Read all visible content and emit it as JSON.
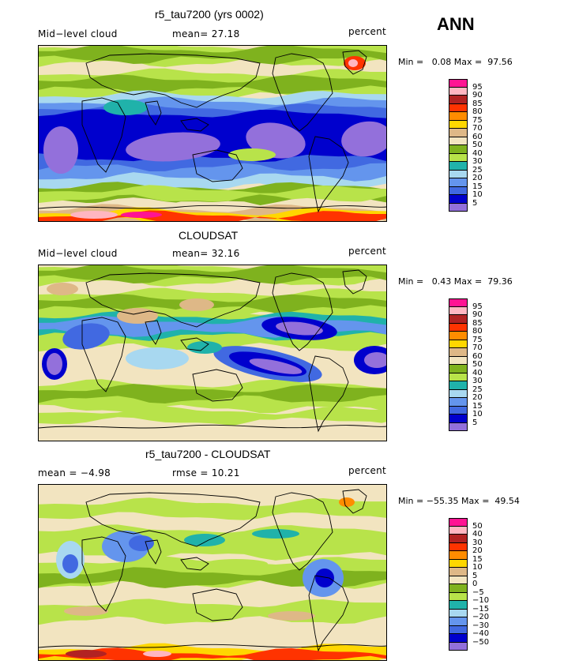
{
  "season": "ANN",
  "panels": [
    {
      "title": "r5_tau7200 (yrs 0002)",
      "left_label": "Mid−level cloud",
      "center_label": "mean=  27.18",
      "right_label": "percent",
      "min_label": "Min =",
      "min_value": "0.08",
      "max_label": "Max =",
      "max_value": "97.56",
      "map_name": "model-cloud-map"
    },
    {
      "title": "CLOUDSAT",
      "left_label": "Mid−level cloud",
      "center_label": "mean=  32.16",
      "right_label": "percent",
      "min_label": "Min =",
      "min_value": "0.43",
      "max_label": "Max =",
      "max_value": "79.36",
      "map_name": "cloudsat-cloud-map"
    },
    {
      "title": "r5_tau7200 - CLOUDSAT",
      "left_label": "mean =   −4.98",
      "center_label": "rmse =  10.21",
      "right_label": "percent",
      "min_label": "Min =",
      "min_value": "−55.35",
      "max_label": "Max =",
      "max_value": "49.54",
      "map_name": "difference-map"
    }
  ],
  "colorbars": {
    "absolute": {
      "labels": [
        "95",
        "90",
        "85",
        "80",
        "75",
        "70",
        "60",
        "50",
        "40",
        "30",
        "25",
        "20",
        "15",
        "10",
        "5"
      ],
      "colors": [
        "#ff1493",
        "#ffb6c1",
        "#b22222",
        "#ff3300",
        "#ff8c00",
        "#ffd700",
        "#deb887",
        "#f2e4c0",
        "#7fb21e",
        "#b8e34a",
        "#20b2aa",
        "#a8d8f0",
        "#6495ed",
        "#4169e1",
        "#0000cd",
        "#9370db"
      ]
    },
    "difference": {
      "labels": [
        "50",
        "40",
        "30",
        "20",
        "15",
        "10",
        "5",
        "0",
        "−5",
        "−10",
        "−15",
        "−20",
        "−30",
        "−40",
        "−50"
      ],
      "colors": [
        "#ff1493",
        "#ffb6c1",
        "#b22222",
        "#ff3300",
        "#ff8c00",
        "#ffd700",
        "#deb887",
        "#f2e4c0",
        "#7fb21e",
        "#b8e34a",
        "#20b2aa",
        "#a8d8f0",
        "#6495ed",
        "#4169e1",
        "#0000cd",
        "#9370db"
      ]
    }
  },
  "chart_data": [
    {
      "type": "heatmap",
      "title": "r5_tau7200 (yrs 0002)",
      "subtitle": "Mid-level cloud",
      "units": "percent",
      "mean": 27.18,
      "min": 0.08,
      "max": 97.56,
      "levels": [
        5,
        10,
        15,
        20,
        25,
        30,
        40,
        50,
        60,
        70,
        75,
        80,
        85,
        90,
        95
      ]
    },
    {
      "type": "heatmap",
      "title": "CLOUDSAT",
      "subtitle": "Mid-level cloud",
      "units": "percent",
      "mean": 32.16,
      "min": 0.43,
      "max": 79.36,
      "levels": [
        5,
        10,
        15,
        20,
        25,
        30,
        40,
        50,
        60,
        70,
        75,
        80,
        85,
        90,
        95
      ]
    },
    {
      "type": "heatmap",
      "title": "r5_tau7200 - CLOUDSAT",
      "units": "percent",
      "mean": -4.98,
      "rmse": 10.21,
      "min": -55.35,
      "max": 49.54,
      "levels": [
        -50,
        -40,
        -30,
        -20,
        -15,
        -10,
        -5,
        0,
        5,
        10,
        15,
        20,
        30,
        40,
        50
      ]
    }
  ]
}
